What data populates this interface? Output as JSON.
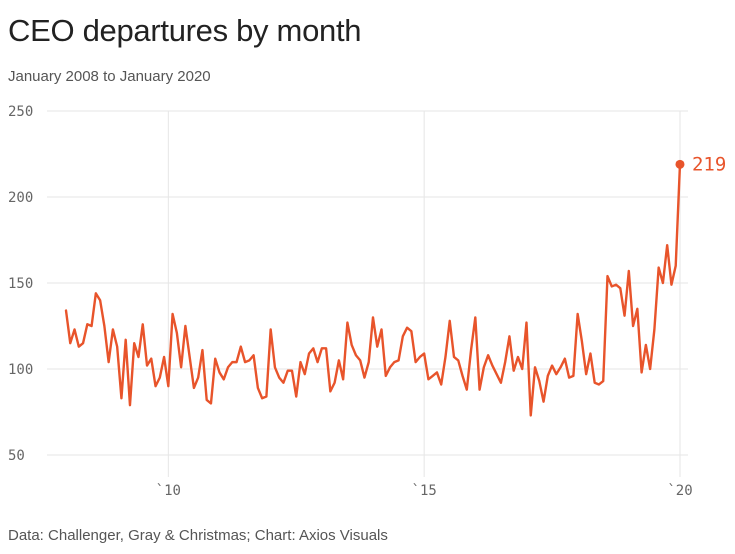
{
  "title": "CEO departures by month",
  "subtitle": "January 2008 to January 2020",
  "source": "Data: Challenger, Gray & Christmas; Chart: Axios Visuals",
  "colors": {
    "line": "#e8542b",
    "grid": "#e6e6e6",
    "text": "#555555"
  },
  "chart_data": {
    "type": "line",
    "title": "CEO departures by month",
    "xlabel": "",
    "ylabel": "",
    "ylim": [
      50,
      250
    ],
    "yticks": [
      250,
      200,
      150,
      100,
      50
    ],
    "xticks": [
      {
        "value": 2010,
        "label": "`10"
      },
      {
        "value": 2015,
        "label": "`15"
      },
      {
        "value": 2020,
        "label": "`20"
      }
    ],
    "x_start": 2008.0,
    "x_step": 0.08333,
    "grid": true,
    "end_label": "219",
    "series": [
      {
        "name": "CEO departures",
        "values": [
          134,
          115,
          123,
          113,
          115,
          126,
          125,
          144,
          140,
          125,
          104,
          123,
          113,
          83,
          117,
          79,
          115,
          107,
          126,
          102,
          106,
          90,
          95,
          107,
          90,
          132,
          121,
          101,
          125,
          107,
          89,
          95,
          111,
          82,
          80,
          106,
          98,
          94,
          101,
          104,
          104,
          113,
          104,
          105,
          108,
          89,
          83,
          84,
          123,
          101,
          95,
          92,
          99,
          99,
          84,
          104,
          97,
          109,
          112,
          104,
          112,
          112,
          87,
          92,
          105,
          94,
          127,
          114,
          108,
          105,
          95,
          104,
          130,
          113,
          123,
          96,
          101,
          104,
          105,
          119,
          124,
          122,
          104,
          107,
          109,
          94,
          96,
          98,
          91,
          107,
          128,
          107,
          105,
          96,
          88,
          111,
          130,
          88,
          101,
          108,
          102,
          97,
          92,
          104,
          119,
          99,
          107,
          100,
          127,
          73,
          101,
          93,
          81,
          96,
          102,
          97,
          101,
          106,
          95,
          96,
          132,
          116,
          97,
          109,
          92,
          91,
          93,
          154,
          148,
          149,
          147,
          131,
          157,
          125,
          135,
          98,
          114,
          100,
          123,
          159,
          150,
          172,
          149,
          160,
          219
        ]
      }
    ]
  }
}
